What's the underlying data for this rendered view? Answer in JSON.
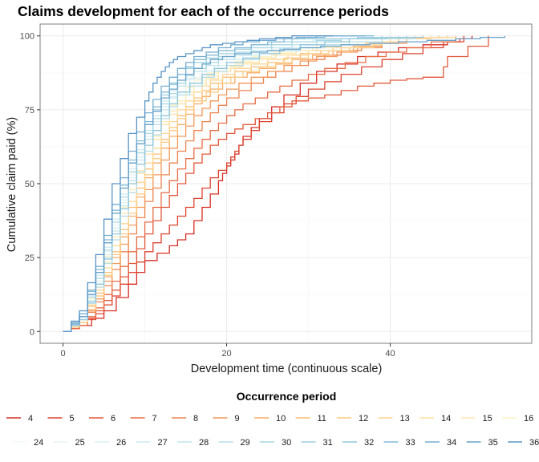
{
  "chart_data": {
    "type": "line",
    "title": "Claims development for each of the occurrence periods",
    "xlabel": "Development time (continuous scale)",
    "ylabel": "Cumulative claim paid (%)",
    "xlim": [
      -2.8,
      57.3
    ],
    "ylim": [
      -4,
      104
    ],
    "x_ticks": [
      0,
      20,
      40
    ],
    "x_tick_labels": [
      "0",
      "20",
      "40"
    ],
    "y_ticks": [
      0,
      25,
      50,
      75,
      100
    ],
    "y_tick_labels": [
      "0",
      "25",
      "50",
      "75",
      "100"
    ],
    "grid": true,
    "legend": {
      "title": "Occurrence period",
      "placement": "bottom",
      "rows": [
        [
          "4",
          "5",
          "6",
          "7",
          "8",
          "9",
          "10",
          "11",
          "12",
          "13",
          "14",
          "15",
          "16"
        ],
        [
          "24",
          "25",
          "26",
          "27",
          "28",
          "29",
          "30",
          "31",
          "32",
          "33",
          "34",
          "35",
          "36"
        ]
      ]
    },
    "series": [
      {
        "name": "4",
        "color": "#d73027",
        "x": [
          0,
          2,
          5,
          8,
          10,
          13,
          15,
          17,
          19,
          20,
          21,
          22,
          24,
          27,
          31,
          36,
          41,
          47,
          50
        ],
        "y": [
          0,
          2,
          7,
          16,
          24,
          29,
          33,
          42,
          51,
          56,
          60,
          66,
          72,
          80,
          88,
          93,
          96,
          98,
          100
        ]
      },
      {
        "name": "5",
        "color": "#dd4531",
        "x": [
          0,
          2,
          4,
          6,
          8,
          10,
          12,
          14,
          16,
          18,
          20,
          21,
          22,
          24,
          27,
          30,
          34,
          39,
          44,
          49
        ],
        "y": [
          0,
          2,
          6,
          12,
          20,
          27,
          33,
          39,
          45,
          52,
          57,
          61,
          65,
          71,
          77,
          82,
          87,
          92,
          96,
          100
        ]
      },
      {
        "name": "6",
        "color": "#e3593b",
        "x": [
          0,
          2,
          4,
          6,
          8,
          10,
          12,
          14,
          16,
          18,
          20,
          22,
          25,
          28,
          32,
          36,
          40,
          44,
          46,
          47,
          52
        ],
        "y": [
          0,
          2,
          7,
          14,
          23,
          33,
          42,
          50,
          57,
          63,
          67,
          70,
          74,
          78,
          80,
          83,
          85,
          86,
          86,
          93,
          100
        ]
      },
      {
        "name": "7",
        "color": "#e86e46",
        "x": [
          0,
          2,
          4,
          6,
          8,
          10,
          12,
          14,
          16,
          18,
          20,
          22,
          25,
          28,
          32,
          37,
          42,
          48
        ],
        "y": [
          0,
          2,
          8,
          17,
          27,
          37,
          47,
          55,
          62,
          68,
          73,
          77,
          81,
          85,
          89,
          93,
          96,
          100
        ]
      },
      {
        "name": "8",
        "color": "#ee8450",
        "x": [
          0,
          2,
          4,
          6,
          8,
          10,
          12,
          14,
          16,
          18,
          20,
          23,
          26,
          30,
          34,
          39,
          45
        ],
        "y": [
          0,
          3,
          10,
          21,
          33,
          44,
          53,
          61,
          68,
          74,
          79,
          84,
          88,
          92,
          95,
          98,
          100
        ]
      },
      {
        "name": "9",
        "color": "#f4995b",
        "x": [
          0,
          2,
          4,
          6,
          8,
          10,
          12,
          14,
          16,
          18,
          20,
          23,
          27,
          31,
          36,
          42,
          47
        ],
        "y": [
          0,
          3,
          11,
          23,
          36,
          48,
          58,
          66,
          73,
          78,
          82,
          86,
          90,
          93,
          96,
          99,
          100
        ]
      },
      {
        "name": "10",
        "color": "#f8ab67",
        "x": [
          0,
          2,
          4,
          6,
          8,
          10,
          12,
          14,
          16,
          18,
          21,
          24,
          28,
          33,
          38,
          44
        ],
        "y": [
          0,
          3,
          12,
          25,
          39,
          52,
          62,
          70,
          77,
          82,
          86,
          89,
          92,
          95,
          98,
          100
        ]
      },
      {
        "name": "11",
        "color": "#fbbd74",
        "x": [
          0,
          2,
          4,
          6,
          8,
          10,
          12,
          14,
          16,
          18,
          21,
          25,
          29,
          34,
          40,
          46
        ],
        "y": [
          0,
          4,
          13,
          27,
          42,
          55,
          65,
          73,
          79,
          84,
          88,
          91,
          94,
          96,
          99,
          100
        ]
      },
      {
        "name": "12",
        "color": "#fdcb82",
        "x": [
          0,
          2,
          4,
          6,
          8,
          10,
          12,
          14,
          16,
          19,
          22,
          26,
          30,
          35,
          41,
          47
        ],
        "y": [
          0,
          3,
          12,
          26,
          40,
          53,
          64,
          72,
          78,
          84,
          88,
          91,
          94,
          96,
          99,
          100
        ]
      },
      {
        "name": "13",
        "color": "#fed693",
        "x": [
          0,
          2,
          4,
          6,
          8,
          10,
          12,
          14,
          16,
          18,
          21,
          25,
          30,
          36,
          42,
          48
        ],
        "y": [
          0,
          4,
          14,
          29,
          44,
          57,
          67,
          75,
          81,
          85,
          89,
          92,
          95,
          97,
          99,
          100
        ]
      },
      {
        "name": "14",
        "color": "#fee0a4",
        "x": [
          0,
          2,
          4,
          6,
          8,
          10,
          12,
          14,
          16,
          19,
          22,
          26,
          31,
          37,
          43
        ],
        "y": [
          0,
          4,
          15,
          31,
          47,
          60,
          70,
          77,
          83,
          88,
          91,
          94,
          96,
          98,
          100
        ]
      },
      {
        "name": "15",
        "color": "#feeab5",
        "x": [
          0,
          2,
          4,
          6,
          8,
          10,
          12,
          14,
          16,
          19,
          23,
          28,
          33,
          39,
          45
        ],
        "y": [
          0,
          4,
          15,
          32,
          48,
          61,
          71,
          78,
          84,
          89,
          92,
          95,
          97,
          99,
          100
        ]
      },
      {
        "name": "16",
        "color": "#fef3c6",
        "x": [
          0,
          2,
          4,
          6,
          8,
          10,
          12,
          14,
          16,
          19,
          23,
          28,
          34,
          40
        ],
        "y": [
          0,
          5,
          17,
          34,
          50,
          63,
          73,
          80,
          85,
          90,
          93,
          96,
          98,
          100
        ]
      },
      {
        "name": "24",
        "color": "#f0f8f9",
        "x": [
          0,
          2,
          4,
          6,
          8,
          10,
          12,
          14,
          16,
          19,
          23,
          28,
          34,
          41
        ],
        "y": [
          0,
          4,
          16,
          33,
          50,
          64,
          74,
          81,
          86,
          91,
          94,
          97,
          99,
          100
        ]
      },
      {
        "name": "25",
        "color": "#e5f4f6",
        "x": [
          0,
          2,
          4,
          6,
          8,
          10,
          12,
          14,
          16,
          19,
          23,
          28,
          33,
          39
        ],
        "y": [
          0,
          5,
          18,
          36,
          53,
          67,
          77,
          84,
          89,
          93,
          96,
          98,
          99,
          100
        ]
      },
      {
        "name": "26",
        "color": "#d9eff3",
        "x": [
          0,
          2,
          4,
          6,
          8,
          10,
          12,
          14,
          17,
          20,
          24,
          29,
          35,
          42
        ],
        "y": [
          0,
          4,
          17,
          35,
          52,
          66,
          76,
          83,
          88,
          92,
          95,
          97,
          99,
          100
        ]
      },
      {
        "name": "27",
        "color": "#cdeaf0",
        "x": [
          0,
          2,
          4,
          6,
          8,
          10,
          12,
          14,
          16,
          19,
          23,
          28,
          34,
          40
        ],
        "y": [
          0,
          5,
          19,
          38,
          55,
          68,
          78,
          85,
          89,
          93,
          96,
          98,
          99,
          100
        ]
      },
      {
        "name": "28",
        "color": "#c1e4ec",
        "x": [
          0,
          2,
          4,
          6,
          8,
          10,
          12,
          14,
          16,
          19,
          23,
          28,
          34,
          41
        ],
        "y": [
          0,
          4,
          16,
          34,
          51,
          65,
          75,
          83,
          88,
          92,
          95,
          97,
          99,
          100
        ]
      },
      {
        "name": "29",
        "color": "#b5dee8",
        "x": [
          0,
          2,
          4,
          6,
          8,
          10,
          12,
          14,
          17,
          20,
          24,
          29,
          35,
          43
        ],
        "y": [
          0,
          4,
          15,
          31,
          47,
          61,
          72,
          80,
          86,
          90,
          94,
          96,
          98,
          100
        ]
      },
      {
        "name": "30",
        "color": "#a9d8e4",
        "x": [
          0,
          2,
          4,
          6,
          8,
          10,
          12,
          14,
          16,
          19,
          23,
          28,
          34,
          42
        ],
        "y": [
          0,
          5,
          18,
          37,
          54,
          67,
          77,
          84,
          89,
          93,
          96,
          98,
          99,
          100
        ]
      },
      {
        "name": "31",
        "color": "#9dcfe0",
        "x": [
          0,
          2,
          4,
          6,
          8,
          10,
          12,
          14,
          16,
          19,
          23,
          28,
          33,
          39
        ],
        "y": [
          0,
          5,
          20,
          40,
          57,
          70,
          80,
          87,
          91,
          94,
          97,
          99,
          99,
          100
        ]
      },
      {
        "name": "32",
        "color": "#90c6dc",
        "x": [
          0,
          2,
          4,
          6,
          8,
          10,
          12,
          14,
          17,
          20,
          24,
          29,
          35,
          44
        ],
        "y": [
          0,
          4,
          16,
          33,
          50,
          63,
          73,
          81,
          87,
          91,
          94,
          97,
          99,
          100
        ]
      },
      {
        "name": "33",
        "color": "#83bbd7",
        "x": [
          0,
          2,
          4,
          6,
          8,
          10,
          12,
          14,
          16,
          19,
          23,
          27,
          32,
          38
        ],
        "y": [
          0,
          6,
          21,
          41,
          58,
          71,
          81,
          87,
          92,
          95,
          97,
          99,
          100,
          100
        ]
      },
      {
        "name": "34",
        "color": "#76afd2",
        "x": [
          0,
          2,
          4,
          6,
          8,
          10,
          12,
          14,
          16,
          19,
          22,
          26,
          31,
          37
        ],
        "y": [
          0,
          6,
          22,
          43,
          61,
          74,
          83,
          89,
          93,
          96,
          98,
          99,
          100,
          100
        ]
      },
      {
        "name": "35",
        "color": "#69a2cc",
        "x": [
          0,
          2,
          4,
          6,
          8,
          10,
          12,
          14,
          16,
          18,
          21,
          25,
          29,
          34,
          41,
          48,
          54
        ],
        "y": [
          0,
          5,
          20,
          40,
          57,
          70,
          79,
          85,
          89,
          92,
          94,
          95,
          96,
          97,
          98,
          99,
          100
        ]
      },
      {
        "name": "36",
        "color": "#5b95c6",
        "x": [
          0,
          2,
          4,
          6,
          8,
          10,
          11,
          12,
          13,
          14,
          16,
          18,
          21,
          24,
          28,
          33
        ],
        "y": [
          0,
          7,
          26,
          50,
          67,
          78,
          84,
          88,
          91,
          93,
          95,
          97,
          98,
          99,
          100,
          100
        ]
      }
    ]
  }
}
